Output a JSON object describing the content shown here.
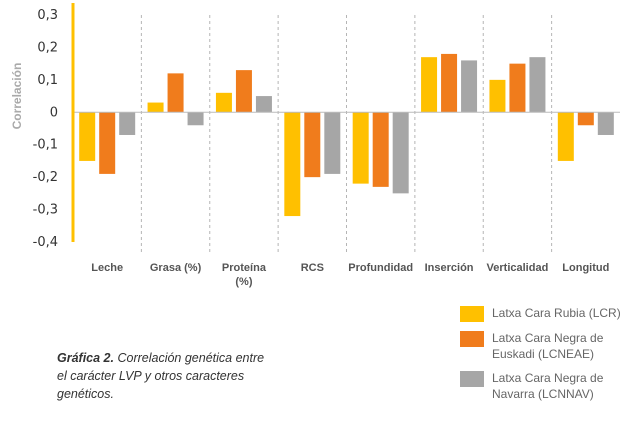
{
  "chart_data": {
    "type": "bar",
    "ylabel": "Correlación",
    "ylim": [
      -0.4,
      0.3
    ],
    "yticks": [
      "0,3",
      "0,2",
      "0,1",
      "0",
      "-0,1",
      "-0,2",
      "-0,3",
      "-0,4"
    ],
    "categories": [
      "Leche",
      "Grasa (%)",
      "Proteína (%)",
      "RCS",
      "Profundidad",
      "Inserción",
      "Verticalidad",
      "Longitud"
    ],
    "series": [
      {
        "name": "Latxa Cara Rubia (LCR)",
        "color": "#FFC000",
        "values": [
          -0.15,
          0.03,
          0.06,
          -0.32,
          -0.22,
          0.17,
          0.1,
          -0.15
        ]
      },
      {
        "name": "Latxa Cara Negra de Euskadi (LCNEAE)",
        "color": "#F07C1C",
        "values": [
          -0.19,
          0.12,
          0.13,
          -0.2,
          -0.23,
          0.18,
          0.15,
          -0.04
        ]
      },
      {
        "name": "Latxa Cara Negra de Navarra (LCNNAV)",
        "color": "#A6A6A6",
        "values": [
          -0.07,
          -0.04,
          0.05,
          -0.19,
          -0.25,
          0.16,
          0.17,
          -0.07
        ]
      }
    ],
    "grid": "vertical-dashed-separators",
    "legend_position": "bottom-right"
  },
  "caption": {
    "bold": "Gráfica 2.",
    "text": "Correlación genética entre el carácter LVP y otros caracteres genéticos."
  }
}
